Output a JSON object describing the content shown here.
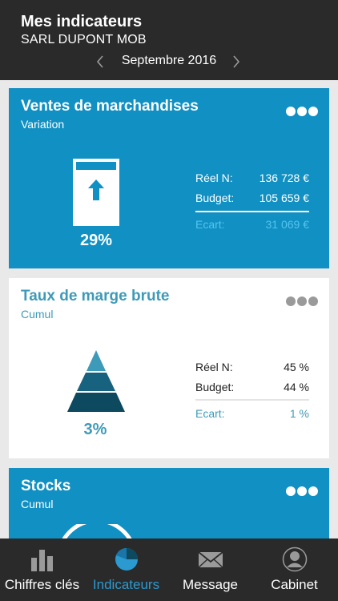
{
  "header": {
    "title": "Mes indicateurs",
    "company": "SARL DUPONT MOB",
    "period": "Septembre 2016"
  },
  "cards": [
    {
      "title": "Ventes de marchandises",
      "subtitle": "Variation",
      "percent": "29%",
      "reel_label": "Réel N:",
      "reel_value": "136 728 €",
      "budget_label": "Budget:",
      "budget_value": "105 659 €",
      "ecart_label": "Ecart:",
      "ecart_value": "31 069 €",
      "icon": "up-arrow-gauge-icon"
    },
    {
      "title": "Taux de marge brute",
      "subtitle": "Cumul",
      "percent": "3%",
      "reel_label": "Réel N:",
      "reel_value": "45 %",
      "budget_label": "Budget:",
      "budget_value": "44 %",
      "ecart_label": "Ecart:",
      "ecart_value": "1 %",
      "icon": "pyramid-icon"
    },
    {
      "title": "Stocks",
      "subtitle": "Cumul",
      "icon": "ring-gauge-icon"
    }
  ],
  "tabs": [
    {
      "label": "Chiffres clés",
      "icon": "bar-chart-icon"
    },
    {
      "label": "Indicateurs",
      "icon": "pie-chart-icon",
      "active": true
    },
    {
      "label": "Message",
      "icon": "envelope-icon"
    },
    {
      "label": "Cabinet",
      "icon": "user-icon"
    }
  ],
  "colors": {
    "header_bg": "#2a2a2a",
    "accent_blue": "#1190c3",
    "teal_text": "#3e9ab9",
    "light_blue": "#55c4ef",
    "tab_active": "#2b9ad1"
  }
}
